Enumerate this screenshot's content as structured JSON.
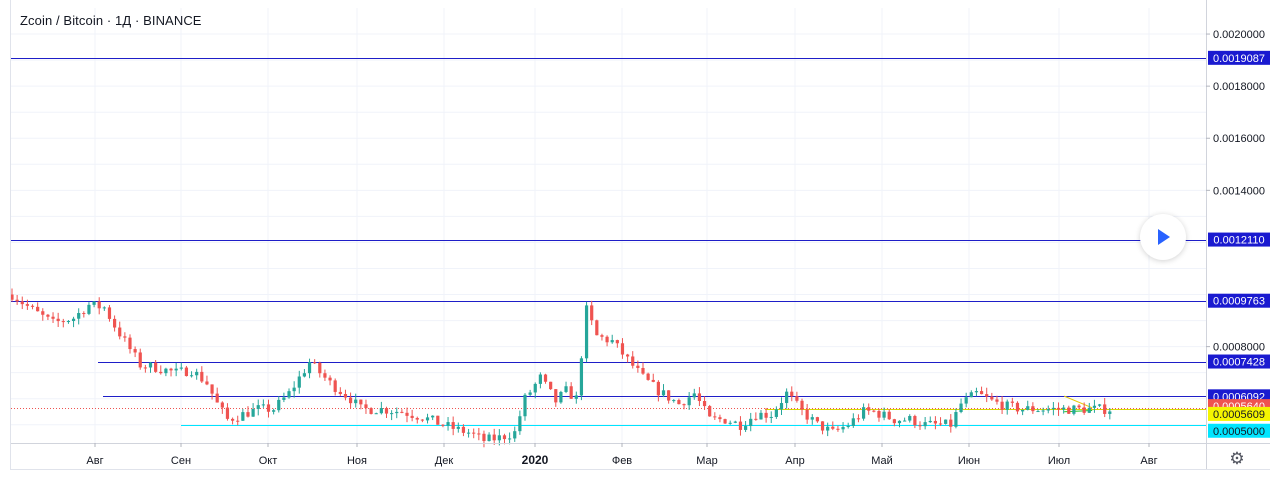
{
  "header": {
    "title": "Zcoin / Bitcoin · 1Д · BINANCE"
  },
  "controls": {
    "gear_icon": "gear-icon",
    "play_icon": "play-icon"
  },
  "chart_data": {
    "type": "candlestick",
    "title": "Zcoin / Bitcoin · 1Д · BINANCE",
    "symbol": "Zcoin / Bitcoin",
    "interval": "1Д",
    "exchange": "BINANCE",
    "y_axis": {
      "ylim": [
        0.00043,
        0.0021
      ],
      "tick_labels": [
        "0.0020000",
        "0.0018000",
        "0.0016000",
        "0.0014000",
        "0.0008000"
      ],
      "tick_values": [
        0.002,
        0.0018,
        0.0016,
        0.0014,
        0.0008
      ]
    },
    "x_axis": {
      "tick_labels": [
        "Авг",
        "Сен",
        "Окт",
        "Ноя",
        "Дек",
        "2020",
        "Фев",
        "Мар",
        "Апр",
        "Май",
        "Июн",
        "Июл",
        "Авг"
      ],
      "bold_label": "2020"
    },
    "horizontal_levels": [
      {
        "value": 0.0019087,
        "label": "0.0019087",
        "color": "#1e1ec8",
        "style": "solid"
      },
      {
        "value": 0.001211,
        "label": "0.0012110",
        "color": "#1e1ec8",
        "style": "solid"
      },
      {
        "value": 0.0009763,
        "label": "0.0009763",
        "color": "#1e1ec8",
        "style": "solid"
      },
      {
        "value": 0.0007428,
        "label": "0.0007428",
        "color": "#1e1ec8",
        "style": "solid"
      },
      {
        "value": 0.0006092,
        "label": "0.0006092",
        "color": "#1e1ec8",
        "style": "solid"
      },
      {
        "value": 0.000564,
        "label": "0.0005640",
        "color": "#ef5350",
        "style": "dotted"
      },
      {
        "value": 0.0005609,
        "label": "0.0005609",
        "color": "#e8e800",
        "style": "solid"
      },
      {
        "value": 0.0005,
        "label": "0.0005000",
        "color": "#00e5ff",
        "style": "solid"
      }
    ],
    "colors": {
      "up": "#26a69a",
      "down": "#ef5350",
      "grid": "#f0f3fa",
      "axis_text": "#131722"
    },
    "close_path": [
      [
        0,
        0.001
      ],
      [
        4,
        0.00094
      ],
      [
        8,
        0.00089
      ],
      [
        12,
        0.00091
      ],
      [
        15,
        0.00096
      ],
      [
        18,
        0.00095
      ],
      [
        20,
        0.00088
      ],
      [
        22,
        0.00082
      ],
      [
        25,
        0.00073
      ],
      [
        28,
        0.00072
      ],
      [
        32,
        0.0007
      ],
      [
        35,
        0.00071
      ],
      [
        38,
        0.00066
      ],
      [
        40,
        0.00058
      ],
      [
        42,
        0.00052
      ],
      [
        45,
        0.00054
      ],
      [
        48,
        0.00056
      ],
      [
        51,
        0.00056
      ],
      [
        54,
        0.00062
      ],
      [
        58,
        0.00074
      ],
      [
        62,
        0.00066
      ],
      [
        66,
        0.0006
      ],
      [
        68,
        0.00056
      ],
      [
        72,
        0.00056
      ],
      [
        76,
        0.00055
      ],
      [
        80,
        0.00053
      ],
      [
        84,
        0.0005
      ],
      [
        87,
        0.00048
      ],
      [
        89,
        0.00047
      ],
      [
        92,
        0.00044
      ],
      [
        95,
        0.00045
      ],
      [
        98,
        0.00047
      ],
      [
        100,
        0.0006
      ],
      [
        103,
        0.00068
      ],
      [
        106,
        0.00059
      ],
      [
        108,
        0.00063
      ],
      [
        110,
        0.0006
      ],
      [
        112,
        0.00094
      ],
      [
        114,
        0.00084
      ],
      [
        117,
        0.00082
      ],
      [
        120,
        0.00075
      ],
      [
        123,
        0.00068
      ],
      [
        126,
        0.00063
      ],
      [
        130,
        0.00058
      ],
      [
        133,
        0.00062
      ],
      [
        136,
        0.00052
      ],
      [
        139,
        0.00052
      ],
      [
        142,
        0.0005
      ],
      [
        145,
        0.00054
      ],
      [
        148,
        0.00054
      ],
      [
        151,
        0.00062
      ],
      [
        154,
        0.00055
      ],
      [
        157,
        0.0005
      ],
      [
        160,
        0.00047
      ],
      [
        163,
        0.0005
      ],
      [
        166,
        0.00055
      ],
      [
        168,
        0.00055
      ],
      [
        172,
        0.00052
      ],
      [
        175,
        0.00052
      ],
      [
        178,
        0.0005
      ],
      [
        180,
        0.0005
      ],
      [
        183,
        0.0005
      ],
      [
        185,
        0.00058
      ],
      [
        188,
        0.00062
      ],
      [
        191,
        0.00059
      ],
      [
        194,
        0.00057
      ],
      [
        197,
        0.00056
      ]
    ]
  }
}
